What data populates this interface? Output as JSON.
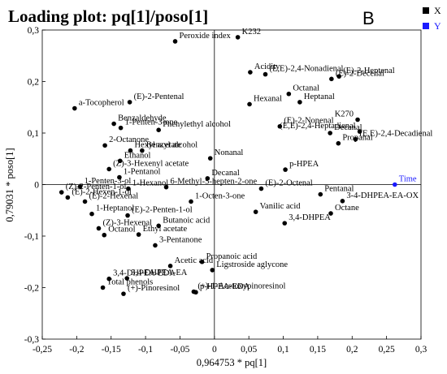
{
  "chart_data": {
    "type": "scatter",
    "title": "Loading plot: pq[1]/poso[1]",
    "panel_label": "B",
    "xlabel": "0,964753 * pq[1]",
    "ylabel": "0,79031 * poso[1]",
    "xlim": [
      -0.25,
      0.3
    ],
    "ylim": [
      -0.3,
      0.3
    ],
    "x_ticks": [
      "-0,25",
      "-0,2",
      "-0,15",
      "-0,1",
      "-0,05",
      "0",
      "0,05",
      "0,1",
      "0,15",
      "0,2",
      "0,25",
      "0,3"
    ],
    "y_ticks": [
      "0,3",
      "0,2",
      "0,1",
      "0",
      "-0,1",
      "-0,2",
      "-0,3"
    ],
    "legend": [
      {
        "name": "X",
        "color": "#000000"
      },
      {
        "name": "Y",
        "color": "#1a1aff"
      }
    ],
    "series": [
      {
        "name": "X",
        "color": "#000000",
        "points": [
          {
            "label": "Peroxide index",
            "x": -0.057,
            "y": 0.278
          },
          {
            "label": "K232",
            "x": 0.034,
            "y": 0.286
          },
          {
            "label": "Acidity",
            "x": 0.052,
            "y": 0.218
          },
          {
            "label": "(E,E)-2,4-Nonadienal",
            "x": 0.074,
            "y": 0.214
          },
          {
            "label": "(E)-2-Heptenal",
            "x": 0.181,
            "y": 0.21
          },
          {
            "label": "(E)-2-Decenal",
            "x": 0.17,
            "y": 0.205
          },
          {
            "label": "Octanal",
            "x": 0.108,
            "y": 0.176
          },
          {
            "label": "Heptanal",
            "x": 0.124,
            "y": 0.16
          },
          {
            "label": "Hexanal",
            "x": 0.051,
            "y": 0.156
          },
          {
            "label": "a-Tocopherol",
            "x": -0.203,
            "y": 0.148
          },
          {
            "label": "(E)-2-Pentenal",
            "x": -0.123,
            "y": 0.16
          },
          {
            "label": "K270",
            "x": 0.208,
            "y": 0.126
          },
          {
            "label": "(E,E)-2,4-Heptadienal",
            "x": 0.211,
            "y": 0.103
          },
          {
            "label": "Decanal",
            "x": 0.168,
            "y": 0.1
          },
          {
            "label": "(E)-2-Nonenal",
            "x": 0.095,
            "y": 0.113
          },
          {
            "label": "Benzaldehyde",
            "x": -0.146,
            "y": 0.118
          },
          {
            "label": "1-Penten-3-one",
            "x": -0.136,
            "y": 0.11
          },
          {
            "label": "Phenylethyl alcohol",
            "x": -0.081,
            "y": 0.106
          },
          {
            "label": "Propanal",
            "x": 0.18,
            "y": 0.08
          },
          {
            "label": "(E,E)-2,4-Decadienal",
            "x": 0.205,
            "y": 0.088
          },
          {
            "label": "2-Octanone",
            "x": -0.159,
            "y": 0.076
          },
          {
            "label": "Hexyl acetate",
            "x": -0.122,
            "y": 0.066
          },
          {
            "label": "Benzyl alcohol",
            "x": -0.105,
            "y": 0.066
          },
          {
            "label": "Ethanol",
            "x": -0.137,
            "y": 0.046
          },
          {
            "label": "Nonanal",
            "x": -0.006,
            "y": 0.051
          },
          {
            "label": "(Z)-3-Hexenyl acetate",
            "x": -0.153,
            "y": 0.03
          },
          {
            "label": "p-HPEA",
            "x": 0.103,
            "y": 0.029
          },
          {
            "label": "1-Pentanol",
            "x": -0.138,
            "y": 0.014
          },
          {
            "label": "Decanal",
            "x": -0.01,
            "y": 0.012
          },
          {
            "label": "1-Penten-3-ol",
            "x": -0.195,
            "y": -0.004
          },
          {
            "label": "1-Hexanol",
            "x": -0.125,
            "y": -0.008
          },
          {
            "label": "6-Methyl-5-hepten-2-one",
            "x": -0.07,
            "y": -0.005
          },
          {
            "label": "(E)-2-Octenal",
            "x": 0.068,
            "y": -0.008
          },
          {
            "label": "Pentanal",
            "x": 0.154,
            "y": -0.019
          },
          {
            "label": "3-4-DHPEA-EA-OX",
            "x": 0.186,
            "y": -0.032
          },
          {
            "label": "(Z)-2-Penten-1-ol",
            "x": -0.222,
            "y": -0.015
          },
          {
            "label": "(E)-2-Hexen-1-ol",
            "x": -0.213,
            "y": -0.025
          },
          {
            "label": "(E)-2-Hexenal",
            "x": -0.188,
            "y": -0.033
          },
          {
            "label": "1-Octen-3-one",
            "x": -0.034,
            "y": -0.033
          },
          {
            "label": "Vanilic acid",
            "x": 0.06,
            "y": -0.053
          },
          {
            "label": "Octane",
            "x": 0.169,
            "y": -0.056
          },
          {
            "label": "1-Heptanol",
            "x": -0.178,
            "y": -0.057
          },
          {
            "label": "(E)-2-Penten-1-ol",
            "x": -0.126,
            "y": -0.06
          },
          {
            "label": "Butanoic acid",
            "x": -0.081,
            "y": -0.08
          },
          {
            "label": "3,4-DHPEA",
            "x": 0.102,
            "y": -0.075
          },
          {
            "label": "(Z)-3-Hexenal",
            "x": -0.168,
            "y": -0.085
          },
          {
            "label": "Octanol",
            "x": -0.16,
            "y": -0.098
          },
          {
            "label": "Ethyl acetate",
            "x": -0.11,
            "y": -0.097
          },
          {
            "label": "3-Pentanone",
            "x": -0.086,
            "y": -0.118
          },
          {
            "label": "Propanoic acid",
            "x": -0.018,
            "y": -0.15
          },
          {
            "label": "Acetic acid",
            "x": -0.064,
            "y": -0.158
          },
          {
            "label": "Ligstroside aglycone",
            "x": -0.003,
            "y": -0.166
          },
          {
            "label": "3,4-DHPEA-EDA",
            "x": -0.153,
            "y": -0.183
          },
          {
            "label": "3,4-DHPEA-EA",
            "x": -0.127,
            "y": -0.182
          },
          {
            "label": "Total phenols",
            "x": -0.162,
            "y": -0.2
          },
          {
            "label": "(+)-Pinoresinol",
            "x": -0.132,
            "y": -0.212
          },
          {
            "label": "p-HPEA-EDA",
            "x": -0.027,
            "y": -0.209
          },
          {
            "label": "(+)-1-Acetoxypinoresinol",
            "x": -0.03,
            "y": -0.208
          }
        ]
      },
      {
        "name": "Y",
        "color": "#1a1aff",
        "points": [
          {
            "label": "Time",
            "x": 0.262,
            "y": 0.0
          }
        ]
      }
    ]
  }
}
